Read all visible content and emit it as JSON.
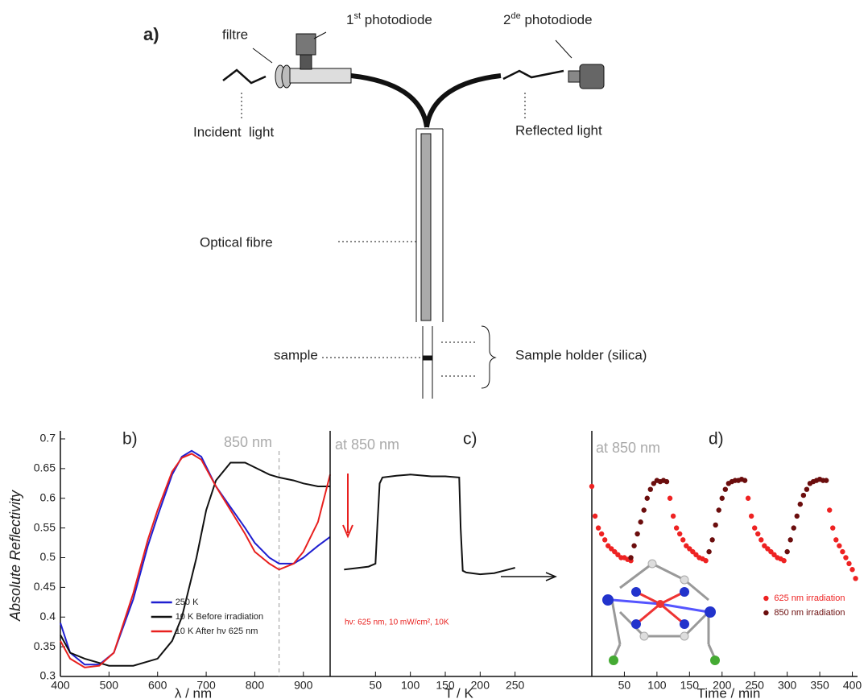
{
  "diagram": {
    "label": "a)",
    "filter": "filtre",
    "photodiode_1": {
      "number": "1",
      "suffix": "st",
      "text": " photodiode"
    },
    "photodiode_2": {
      "number": "2",
      "suffix": "de",
      "text": " photodiode"
    },
    "incident": "Incident  light",
    "reflected": "Reflected light",
    "fibre": "Optical fibre",
    "sample": "sample",
    "holder": "Sample holder (silica)"
  },
  "chart_data": [
    {
      "type": "line",
      "label": "b)",
      "ylabel": "Absolute Reflectivity",
      "xlabel": "λ / nm",
      "xlim": [
        400,
        955
      ],
      "xticks": [
        400,
        500,
        600,
        700,
        800,
        900
      ],
      "ylim": [
        0.3,
        0.7
      ],
      "yticks": [
        0.3,
        0.35,
        0.4,
        0.45,
        0.5,
        0.55,
        0.6,
        0.65,
        0.7
      ],
      "marker_x": 850,
      "marker_label": "850 nm",
      "legend": "lower center",
      "series": [
        {
          "name": "250 K",
          "color": "#1f1fd0",
          "x": [
            400,
            420,
            450,
            480,
            510,
            550,
            580,
            600,
            630,
            650,
            670,
            690,
            720,
            750,
            780,
            800,
            830,
            850,
            880,
            900,
            930,
            955
          ],
          "values": [
            0.39,
            0.34,
            0.32,
            0.32,
            0.34,
            0.43,
            0.52,
            0.57,
            0.64,
            0.67,
            0.68,
            0.67,
            0.62,
            0.585,
            0.55,
            0.525,
            0.5,
            0.49,
            0.49,
            0.5,
            0.52,
            0.535
          ]
        },
        {
          "name": "10 K Before irradiation",
          "color": "#111111",
          "x": [
            400,
            420,
            450,
            500,
            550,
            600,
            630,
            650,
            680,
            700,
            720,
            750,
            780,
            800,
            830,
            850,
            880,
            900,
            930,
            955
          ],
          "values": [
            0.37,
            0.34,
            0.33,
            0.318,
            0.318,
            0.33,
            0.36,
            0.4,
            0.5,
            0.58,
            0.63,
            0.66,
            0.66,
            0.652,
            0.64,
            0.635,
            0.63,
            0.625,
            0.62,
            0.62
          ]
        },
        {
          "name": "10 K After hν 625 nm",
          "color": "#e8201e",
          "x": [
            400,
            420,
            450,
            480,
            510,
            550,
            580,
            600,
            630,
            650,
            670,
            690,
            720,
            750,
            780,
            800,
            830,
            850,
            880,
            900,
            930,
            955
          ],
          "values": [
            0.36,
            0.33,
            0.315,
            0.318,
            0.34,
            0.44,
            0.53,
            0.58,
            0.645,
            0.668,
            0.675,
            0.665,
            0.62,
            0.58,
            0.54,
            0.51,
            0.49,
            0.48,
            0.49,
            0.51,
            0.56,
            0.64
          ]
        }
      ]
    },
    {
      "type": "line",
      "label": "c)",
      "xlabel": "T / K",
      "note": "at 850 nm",
      "condition": "hν: 625 nm, 10 mW/cm², 10K",
      "xlim": [
        -15,
        360
      ],
      "xticks": [
        50,
        100,
        150,
        200,
        250
      ],
      "ylim": [
        0.3,
        0.7
      ],
      "series": [
        {
          "color": "#111111",
          "x": [
            5,
            20,
            40,
            50,
            53,
            56,
            60,
            80,
            100,
            130,
            150,
            170,
            172,
            175,
            180,
            200,
            220,
            240,
            250
          ],
          "values": [
            0.48,
            0.482,
            0.485,
            0.49,
            0.56,
            0.625,
            0.635,
            0.638,
            0.64,
            0.637,
            0.637,
            0.635,
            0.55,
            0.478,
            0.475,
            0.472,
            0.474,
            0.48,
            0.483
          ]
        }
      ]
    },
    {
      "type": "scatter",
      "label": "d)",
      "xlabel": "Time / min",
      "note": "at 850 nm",
      "xlim": [
        0,
        408
      ],
      "xticks": [
        50,
        100,
        150,
        200,
        250,
        300,
        350,
        400
      ],
      "ylim": [
        0.3,
        0.7
      ],
      "legend": "lower right",
      "series": [
        {
          "name": "625 nm irradiation",
          "color": "#ee2222",
          "x": [
            0,
            5,
            10,
            15,
            20,
            25,
            30,
            35,
            40,
            45,
            50,
            55,
            60,
            120,
            125,
            130,
            135,
            140,
            145,
            150,
            155,
            160,
            165,
            170,
            175,
            240,
            245,
            250,
            255,
            260,
            265,
            270,
            275,
            280,
            285,
            290,
            295,
            365,
            370,
            375,
            380,
            385,
            390,
            395,
            400,
            405
          ],
          "values": [
            0.62,
            0.57,
            0.55,
            0.54,
            0.53,
            0.52,
            0.515,
            0.51,
            0.505,
            0.5,
            0.5,
            0.497,
            0.495,
            0.6,
            0.57,
            0.55,
            0.54,
            0.53,
            0.52,
            0.515,
            0.51,
            0.505,
            0.5,
            0.498,
            0.495,
            0.6,
            0.57,
            0.55,
            0.54,
            0.53,
            0.52,
            0.515,
            0.51,
            0.505,
            0.5,
            0.498,
            0.495,
            0.58,
            0.55,
            0.53,
            0.52,
            0.51,
            0.5,
            0.49,
            0.48,
            0.465
          ]
        },
        {
          "name": "850 nm irradiation",
          "color": "#6b0d0d",
          "x": [
            60,
            65,
            70,
            75,
            80,
            85,
            90,
            95,
            100,
            105,
            110,
            115,
            180,
            185,
            190,
            195,
            200,
            205,
            210,
            215,
            220,
            225,
            230,
            235,
            300,
            305,
            310,
            315,
            320,
            325,
            330,
            335,
            340,
            345,
            350,
            355,
            360
          ],
          "values": [
            0.5,
            0.52,
            0.54,
            0.56,
            0.58,
            0.6,
            0.615,
            0.625,
            0.63,
            0.628,
            0.63,
            0.628,
            0.51,
            0.53,
            0.555,
            0.58,
            0.6,
            0.615,
            0.625,
            0.628,
            0.63,
            0.63,
            0.632,
            0.63,
            0.51,
            0.53,
            0.55,
            0.57,
            0.59,
            0.605,
            0.615,
            0.625,
            0.628,
            0.63,
            0.632,
            0.63,
            0.63
          ]
        }
      ]
    }
  ]
}
